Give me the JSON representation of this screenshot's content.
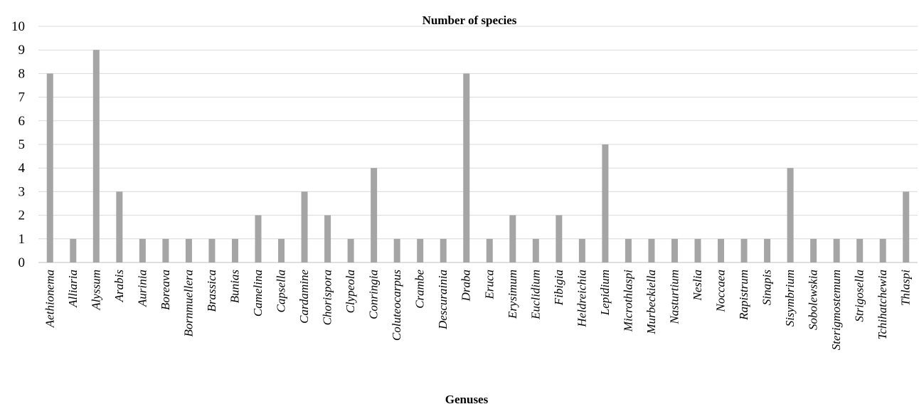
{
  "chart_data": {
    "type": "bar",
    "title": "Number of species",
    "xlabel": "Genuses",
    "ylabel": "",
    "ylim": [
      0,
      10
    ],
    "yticks": [
      0,
      1,
      2,
      3,
      4,
      5,
      6,
      7,
      8,
      9,
      10
    ],
    "grid": true,
    "legend": "none",
    "bar_color": "#a5a5a5",
    "categories": [
      "Aethionema",
      "Alliaria",
      "Alyssum",
      "Arabis",
      "Aurinia",
      "Boreava",
      "Bornmuellera",
      "Brassica",
      "Bunias",
      "Camelina",
      "Capsella",
      "Cardamine",
      "Chorispora",
      "Clypeola",
      "Conringia",
      "Coluteocarpus",
      "Crambe",
      "Descurainia",
      "Draba",
      "Eruca",
      "Erysimum",
      "Euclidium",
      "Fibigia",
      "Heldreichia",
      "Lepidium",
      "Microthlaspi",
      "Murbeckiella",
      "Nasturtium",
      "Neslia",
      "Noccaea",
      "Rapistrum",
      "Sinapis",
      "Sisymbrium",
      "Sobolewskia",
      "Sterigmostemum",
      "Strigosella",
      "Tchihatchewia",
      "Thlaspi"
    ],
    "values": [
      8,
      1,
      9,
      3,
      1,
      1,
      1,
      1,
      1,
      2,
      1,
      3,
      2,
      1,
      4,
      1,
      1,
      1,
      8,
      1,
      2,
      1,
      2,
      1,
      5,
      1,
      1,
      1,
      1,
      1,
      1,
      1,
      4,
      1,
      1,
      1,
      1,
      3
    ]
  }
}
